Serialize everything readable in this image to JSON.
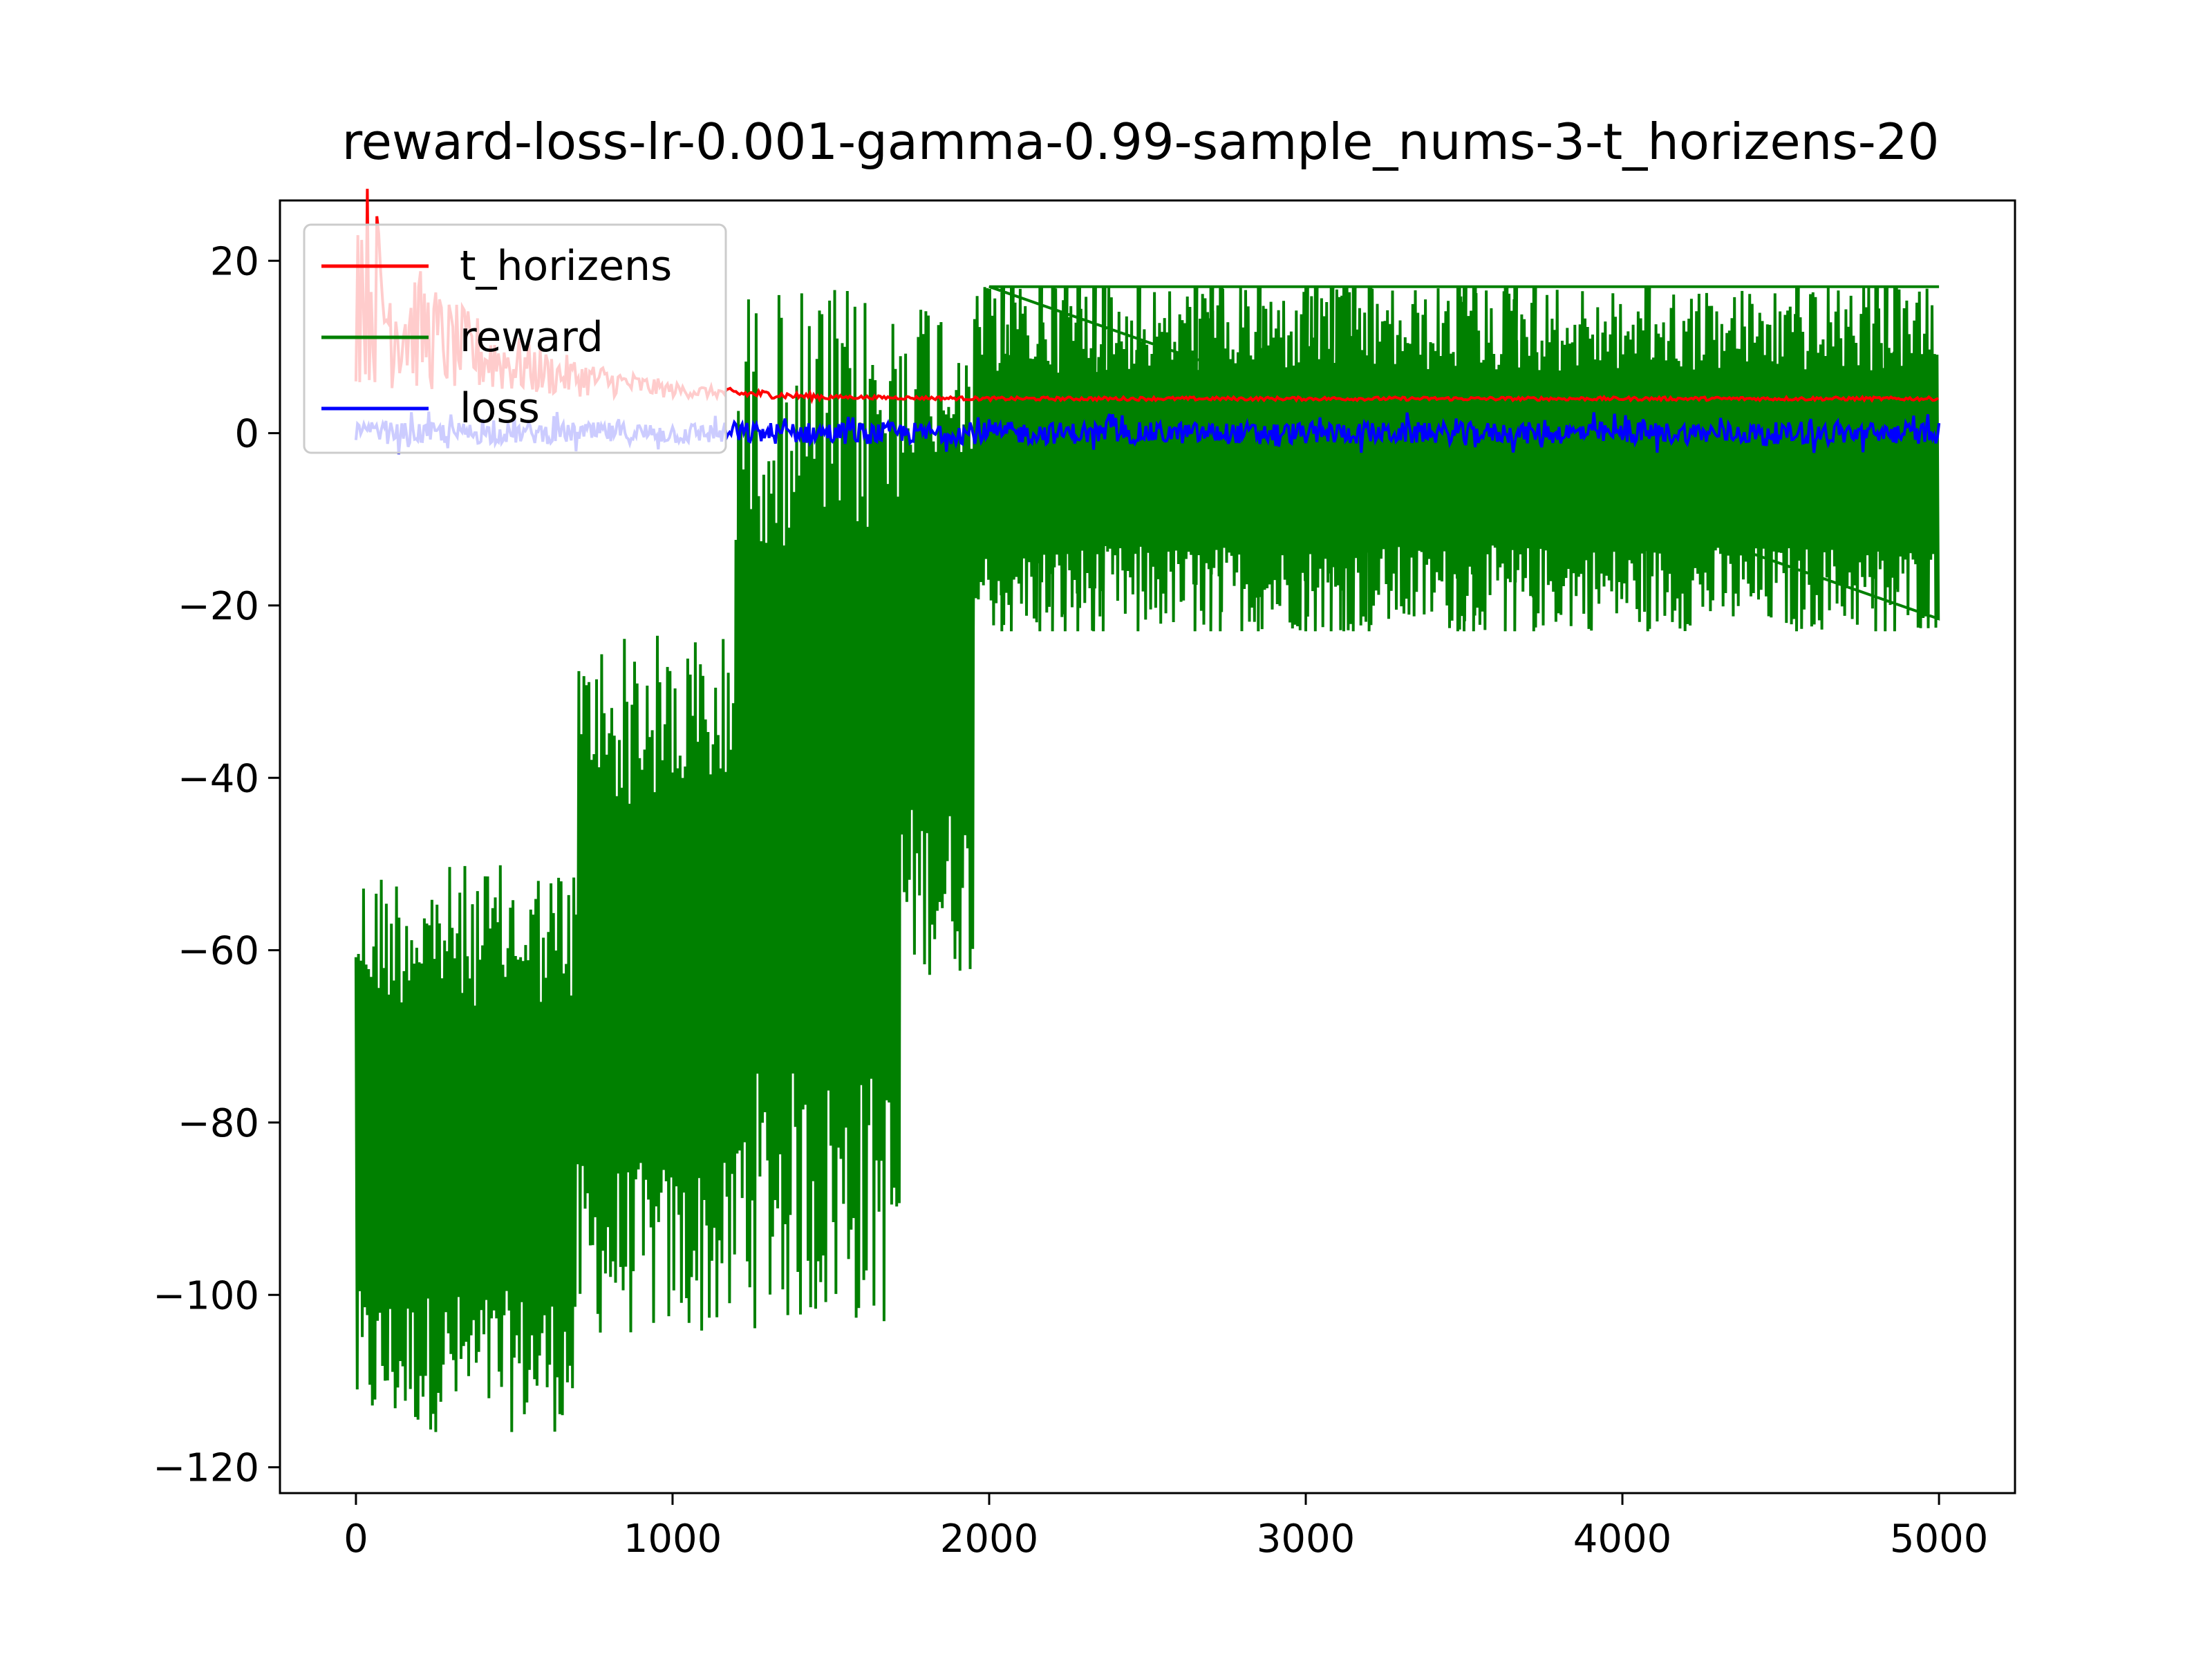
{
  "chart_data": {
    "type": "line",
    "title": "reward-loss-lr-0.001-gamma-0.99-sample_nums-3-t_horizens-20",
    "xlabel": "",
    "ylabel": "",
    "xlim": [
      -240,
      5240
    ],
    "ylim": [
      -123,
      27
    ],
    "x_ticks": [
      0,
      1000,
      2000,
      3000,
      4000,
      5000
    ],
    "x_tick_labels": [
      "0",
      "1000",
      "2000",
      "3000",
      "4000",
      "5000"
    ],
    "y_ticks": [
      20,
      0,
      -20,
      -40,
      -60,
      -80,
      -100,
      -120
    ],
    "y_tick_labels": [
      "20",
      "0",
      "−20",
      "−40",
      "−60",
      "−80",
      "−100",
      "−120"
    ],
    "grid": false,
    "legend_position": "top-left",
    "series": [
      {
        "name": "t_horizens",
        "color": "#ff0000",
        "x": [
          0,
          100,
          200,
          300,
          400,
          500,
          600,
          700,
          800,
          900,
          1000,
          1100,
          1200,
          1300,
          1400,
          1500,
          2000,
          3000,
          4000,
          5000
        ],
        "y": [
          19.5,
          14,
          12,
          10,
          9,
          8,
          7,
          6.5,
          6,
          5.5,
          5,
          4.8,
          4.6,
          4.5,
          4.3,
          4.2,
          4,
          4,
          4,
          4
        ]
      },
      {
        "name": "reward",
        "color": "#008000",
        "regions": [
          {
            "x_range": [
              0,
              700
            ],
            "min": -116,
            "max": -50
          },
          {
            "x_range": [
              700,
              1200
            ],
            "min": -105,
            "max": -23
          },
          {
            "x_range": [
              1200,
              1720
            ],
            "min": -104,
            "max": 17
          },
          {
            "x_range": [
              1720,
              1950
            ],
            "min": -63,
            "max": 17
          },
          {
            "x_range": [
              1950,
              5000
            ],
            "min": -23,
            "max": 17
          }
        ],
        "baseline_after_2000": 17,
        "dips_to_minus_23_at_x": [
          2040,
          2070,
          2160,
          2200,
          2240,
          2280,
          2330,
          2360,
          2470,
          2650,
          2700,
          2730,
          2850,
          3000,
          3030,
          3080,
          3120,
          3150,
          3200,
          3480,
          3500,
          3530,
          3630,
          3660,
          3720,
          4080,
          4550,
          4800,
          4830,
          4860
        ]
      },
      {
        "name": "loss",
        "color": "#0000ff",
        "mean": 0,
        "range": [
          -2.5,
          2.5
        ],
        "x_range": [
          0,
          5000
        ]
      }
    ]
  }
}
